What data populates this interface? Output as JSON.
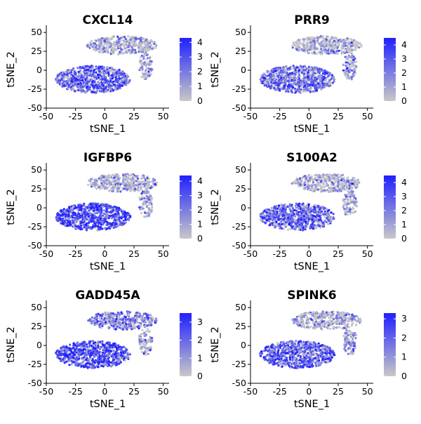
{
  "chart_data": [
    {
      "type": "scatter",
      "title": "CXCL14",
      "xlabel": "tSNE_1",
      "ylabel": "tSNE_2",
      "xlim": [
        -50,
        55
      ],
      "ylim": [
        -50,
        52
      ],
      "x_ticks": [
        "-50",
        "-25",
        "0",
        "25",
        "50"
      ],
      "y_ticks": [
        "50",
        "25",
        "0",
        "-25",
        "-50"
      ],
      "legend": {
        "placement": "right",
        "min": 0,
        "max": 4.3,
        "ticks": [
          "4",
          "3",
          "2",
          "1",
          "0"
        ],
        "low_color": "#c8c8c8",
        "high_color": "#2020ff"
      },
      "clusters": [
        {
          "name": "lower",
          "center": [
            -10,
            -12
          ],
          "radius": [
            32,
            18
          ],
          "mean_expr": 0.55
        },
        {
          "name": "upper",
          "center": [
            15,
            33
          ],
          "radius": [
            30,
            12
          ],
          "mean_expr": 0.08
        },
        {
          "name": "right-arm",
          "center": [
            35,
            5
          ],
          "radius": [
            6,
            18
          ],
          "mean_expr": 0.15
        }
      ],
      "grid": false
    },
    {
      "type": "scatter",
      "title": "PRR9",
      "xlabel": "tSNE_1",
      "ylabel": "tSNE_2",
      "xlim": [
        -50,
        55
      ],
      "ylim": [
        -50,
        52
      ],
      "x_ticks": [
        "-50",
        "-25",
        "0",
        "25",
        "50"
      ],
      "y_ticks": [
        "50",
        "25",
        "0",
        "-25",
        "-50"
      ],
      "legend": {
        "placement": "right",
        "min": 0,
        "max": 4.5,
        "ticks": [
          "4",
          "3",
          "2",
          "1",
          "0"
        ],
        "low_color": "#c8c8c8",
        "high_color": "#2020ff"
      },
      "clusters": [
        {
          "name": "lower",
          "center": [
            -10,
            -12
          ],
          "radius": [
            32,
            18
          ],
          "mean_expr": 0.5
        },
        {
          "name": "upper",
          "center": [
            15,
            33
          ],
          "radius": [
            30,
            12
          ],
          "mean_expr": 0.08
        },
        {
          "name": "right-arm",
          "center": [
            35,
            5
          ],
          "radius": [
            6,
            18
          ],
          "mean_expr": 0.2
        }
      ],
      "grid": false
    },
    {
      "type": "scatter",
      "title": "IGFBP6",
      "xlabel": "tSNE_1",
      "ylabel": "tSNE_2",
      "xlim": [
        -50,
        55
      ],
      "ylim": [
        -50,
        52
      ],
      "x_ticks": [
        "-50",
        "-25",
        "0",
        "25",
        "50"
      ],
      "y_ticks": [
        "50",
        "25",
        "0",
        "-25",
        "-50"
      ],
      "legend": {
        "placement": "right",
        "min": 0,
        "max": 4.4,
        "ticks": [
          "4",
          "3",
          "2",
          "1",
          "0"
        ],
        "low_color": "#c8c8c8",
        "high_color": "#2020ff"
      },
      "clusters": [
        {
          "name": "lower",
          "center": [
            -10,
            -12
          ],
          "radius": [
            32,
            18
          ],
          "mean_expr": 0.75
        },
        {
          "name": "upper",
          "center": [
            15,
            33
          ],
          "radius": [
            30,
            12
          ],
          "mean_expr": 0.1
        },
        {
          "name": "right-arm",
          "center": [
            35,
            5
          ],
          "radius": [
            6,
            18
          ],
          "mean_expr": 0.15
        }
      ],
      "grid": false
    },
    {
      "type": "scatter",
      "title": "S100A2",
      "xlabel": "tSNE_1",
      "ylabel": "tSNE_2",
      "xlim": [
        -50,
        55
      ],
      "ylim": [
        -50,
        52
      ],
      "x_ticks": [
        "-50",
        "-25",
        "0",
        "25",
        "50"
      ],
      "y_ticks": [
        "50",
        "25",
        "0",
        "-25",
        "-50"
      ],
      "legend": {
        "placement": "right",
        "min": 0,
        "max": 4.5,
        "ticks": [
          "4",
          "3",
          "2",
          "1",
          "0"
        ],
        "low_color": "#c8c8c8",
        "high_color": "#2020ff"
      },
      "clusters": [
        {
          "name": "lower",
          "center": [
            -10,
            -12
          ],
          "radius": [
            32,
            18
          ],
          "mean_expr": 0.55
        },
        {
          "name": "upper",
          "center": [
            15,
            33
          ],
          "radius": [
            30,
            12
          ],
          "mean_expr": 0.1
        },
        {
          "name": "right-arm",
          "center": [
            35,
            5
          ],
          "radius": [
            6,
            18
          ],
          "mean_expr": 0.15
        }
      ],
      "grid": false
    },
    {
      "type": "scatter",
      "title": "GADD45A",
      "xlabel": "tSNE_1",
      "ylabel": "tSNE_2",
      "xlim": [
        -50,
        55
      ],
      "ylim": [
        -50,
        52
      ],
      "x_ticks": [
        "-50",
        "-25",
        "0",
        "25",
        "50"
      ],
      "y_ticks": [
        "50",
        "25",
        "0",
        "-25",
        "-50"
      ],
      "legend": {
        "placement": "right",
        "min": 0,
        "max": 3.5,
        "ticks": [
          "3",
          "2",
          "1",
          "0"
        ],
        "low_color": "#c8c8c8",
        "high_color": "#2020ff"
      },
      "clusters": [
        {
          "name": "lower",
          "center": [
            -10,
            -12
          ],
          "radius": [
            32,
            18
          ],
          "mean_expr": 0.7
        },
        {
          "name": "upper",
          "center": [
            15,
            33
          ],
          "radius": [
            30,
            12
          ],
          "mean_expr": 0.4
        },
        {
          "name": "right-arm",
          "center": [
            35,
            5
          ],
          "radius": [
            6,
            18
          ],
          "mean_expr": 0.15
        }
      ],
      "grid": false
    },
    {
      "type": "scatter",
      "title": "SPINK6",
      "xlabel": "tSNE_1",
      "ylabel": "tSNE_2",
      "xlim": [
        -50,
        55
      ],
      "ylim": [
        -50,
        52
      ],
      "x_ticks": [
        "-50",
        "-25",
        "0",
        "25",
        "50"
      ],
      "y_ticks": [
        "50",
        "25",
        "0",
        "-25",
        "-50"
      ],
      "legend": {
        "placement": "right",
        "min": 0,
        "max": 3.3,
        "ticks": [
          "3",
          "2",
          "1",
          "0"
        ],
        "low_color": "#c8c8c8",
        "high_color": "#2020ff"
      },
      "clusters": [
        {
          "name": "lower",
          "center": [
            -10,
            -12
          ],
          "radius": [
            32,
            18
          ],
          "mean_expr": 0.6
        },
        {
          "name": "upper",
          "center": [
            15,
            33
          ],
          "radius": [
            30,
            12
          ],
          "mean_expr": 0.1
        },
        {
          "name": "right-arm",
          "center": [
            35,
            5
          ],
          "radius": [
            6,
            18
          ],
          "mean_expr": 0.3
        }
      ],
      "grid": false
    }
  ]
}
